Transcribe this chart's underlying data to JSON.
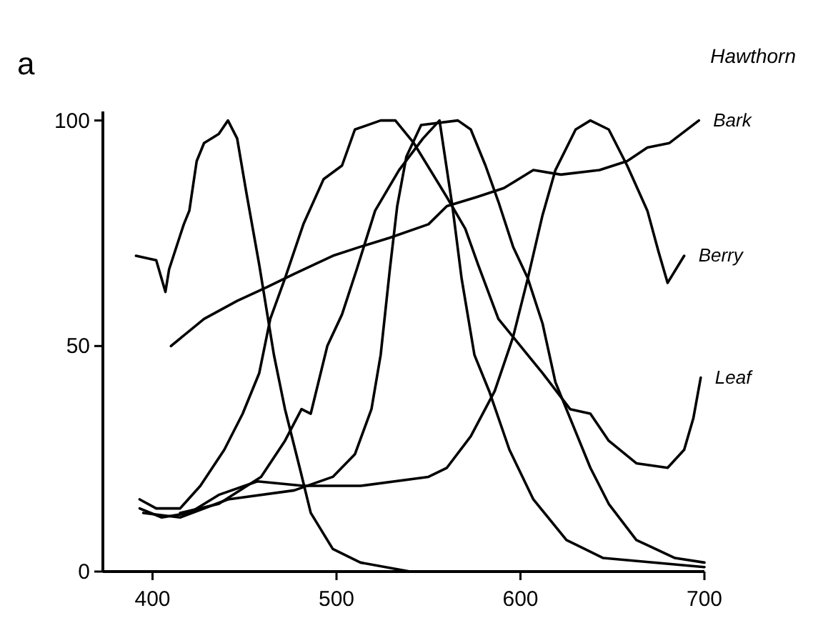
{
  "chart_data": {
    "type": "line",
    "title": "Hawthorn",
    "annotations": [
      "a"
    ],
    "xlim": [
      373,
      700
    ],
    "ylim": [
      0,
      102
    ],
    "xticks": [
      400,
      500,
      600,
      700
    ],
    "yticks": [
      0,
      50,
      100
    ],
    "grid": false,
    "legend": false,
    "marker": "none",
    "line_style": "solid",
    "series": [
      {
        "color": "#000000",
        "x": [
          391,
          402,
          407,
          409,
          417,
          420,
          424,
          428,
          436,
          441,
          446,
          451,
          458,
          466,
          472,
          480,
          486,
          498,
          513,
          540
        ],
        "values": [
          70,
          69,
          62,
          67,
          77,
          80,
          91,
          95,
          97,
          100,
          96,
          84,
          68,
          48,
          36,
          23,
          13,
          5,
          2,
          0
        ]
      },
      {
        "color": "#000000",
        "x": [
          415,
          436,
          459,
          472,
          481,
          486,
          495,
          503,
          511,
          521,
          534,
          547,
          556,
          563,
          568,
          575,
          583,
          594,
          607,
          625,
          645,
          700
        ],
        "values": [
          13,
          15,
          21,
          29,
          36,
          35,
          50,
          57,
          67,
          80,
          89,
          96,
          100,
          81,
          65,
          48,
          40,
          27,
          16,
          7,
          3,
          1
        ]
      },
      {
        "color": "#000000",
        "x": [
          395,
          415,
          441,
          477,
          498,
          510,
          519,
          524,
          529,
          533,
          538,
          546,
          566,
          573,
          581,
          588,
          596,
          604,
          612,
          619,
          627,
          638,
          648,
          663,
          684,
          700
        ],
        "values": [
          13,
          12,
          16,
          18,
          21,
          26,
          36,
          48,
          67,
          81,
          92,
          99,
          100,
          98,
          90,
          82,
          72,
          65,
          55,
          42,
          34,
          23,
          15,
          7,
          3,
          2
        ]
      },
      {
        "name": "Bark",
        "color": "#000000",
        "x": [
          410,
          428,
          446,
          462,
          477,
          498,
          513,
          529,
          550,
          560,
          576,
          591,
          607,
          622,
          643,
          658,
          669,
          681,
          697
        ],
        "values": [
          50,
          56,
          60,
          63,
          66,
          70,
          72,
          74,
          77,
          81,
          83,
          85,
          89,
          88,
          89,
          91,
          94,
          95,
          100
        ]
      },
      {
        "name": "Berry",
        "color": "#000000",
        "x": [
          393,
          405,
          420,
          436,
          457,
          482,
          513,
          550,
          560,
          573,
          586,
          596,
          604,
          612,
          619,
          630,
          638,
          648,
          658,
          669,
          675,
          680,
          689
        ],
        "values": [
          14,
          12,
          13,
          17,
          20,
          19,
          19,
          21,
          23,
          30,
          40,
          52,
          65,
          79,
          89,
          98,
          100,
          98,
          90,
          80,
          71,
          64,
          70
        ]
      },
      {
        "name": "Leaf",
        "color": "#000000",
        "x": [
          393,
          402,
          415,
          426,
          439,
          449,
          458,
          464,
          472,
          482,
          493,
          503,
          510,
          524,
          532,
          542,
          560,
          570,
          577,
          588,
          596,
          612,
          627,
          638,
          648,
          663,
          680,
          689,
          694,
          698
        ],
        "values": [
          16,
          14,
          14,
          19,
          27,
          35,
          44,
          56,
          65,
          77,
          87,
          90,
          98,
          100,
          100,
          95,
          83,
          76,
          68,
          56,
          52,
          44,
          36,
          35,
          29,
          24,
          23,
          27,
          34,
          43
        ]
      }
    ]
  }
}
